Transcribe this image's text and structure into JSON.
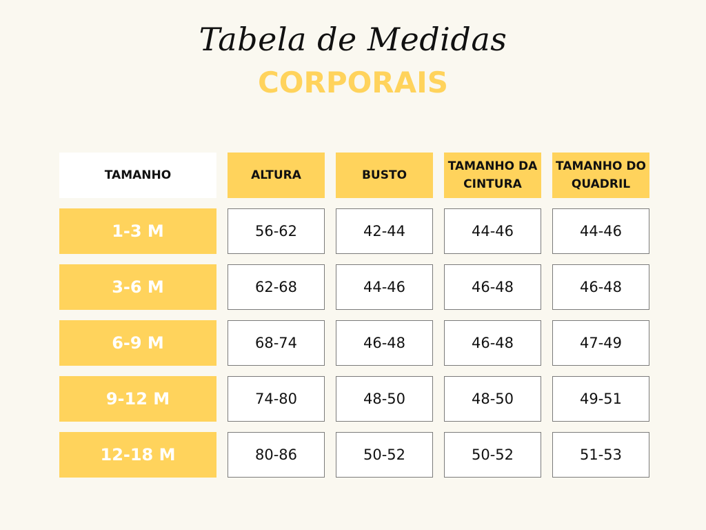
{
  "title": "Tabela de Medidas",
  "subtitle": "CORPORAIS",
  "columns": [
    "TAMANHO",
    "ALTURA",
    "BUSTO",
    "TAMANHO DA CINTURA",
    "TAMANHO DO QUADRIL"
  ],
  "rows": [
    {
      "size": "1-3 M",
      "values": [
        "56-62",
        "42-44",
        "44-46",
        "44-46"
      ]
    },
    {
      "size": "3-6 M",
      "values": [
        "62-68",
        "44-46",
        "46-48",
        "46-48"
      ]
    },
    {
      "size": "6-9 M",
      "values": [
        "68-74",
        "46-48",
        "46-48",
        "47-49"
      ]
    },
    {
      "size": "9-12 M",
      "values": [
        "74-80",
        "48-50",
        "48-50",
        "49-51"
      ]
    },
    {
      "size": "12-18 M",
      "values": [
        "80-86",
        "50-52",
        "50-52",
        "51-53"
      ]
    }
  ],
  "colors": {
    "accent": "#ffd35c",
    "background": "#faf8f0",
    "cell_background": "#ffffff",
    "cell_border": "#7a7a7a",
    "text": "#111111"
  }
}
